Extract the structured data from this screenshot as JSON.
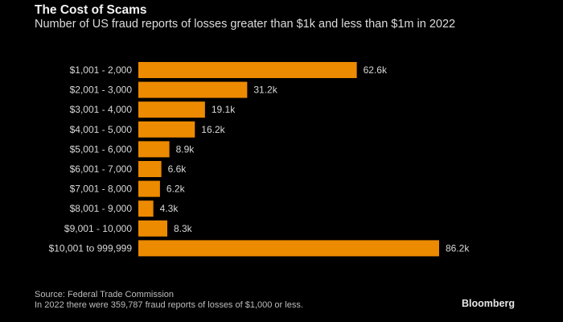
{
  "chart_data": {
    "type": "bar",
    "orientation": "horizontal",
    "title": "The Cost of Scams",
    "subtitle": "Number of US fraud reports of losses greater than $1k and less than $1m in 2022",
    "categories": [
      "$1,001 - 2,000",
      "$2,001 - 3,000",
      "$3,001 - 4,000",
      "$4,001 - 5,000",
      "$5,001 - 6,000",
      "$6,001 - 7,000",
      "$7,001 - 8,000",
      "$8,001 - 9,000",
      "$9,001 - 10,000",
      "$10,001 to 999,999"
    ],
    "values": [
      62.6,
      31.2,
      19.1,
      16.2,
      8.9,
      6.6,
      6.2,
      4.3,
      8.3,
      86.2
    ],
    "value_labels": [
      "62.6k",
      "31.2k",
      "19.1k",
      "16.2k",
      "8.9k",
      "6.6k",
      "6.2k",
      "4.3k",
      "8.3k",
      "86.2k"
    ],
    "value_unit": "thousands of reports",
    "xlabel": "",
    "ylabel": "",
    "xlim": [
      0,
      86.2
    ],
    "grid": false,
    "bar_color": "#ec8a00"
  },
  "footer": {
    "source": "Source: Federal Trade Commission",
    "note": "In 2022 there were 359,787 fraud reports of losses of $1,000 or less."
  },
  "brand": "Bloomberg"
}
